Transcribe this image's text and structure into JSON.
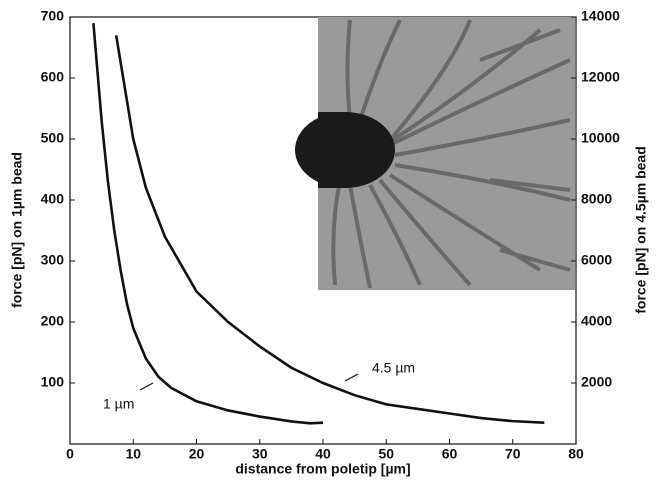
{
  "chart_data": {
    "type": "line",
    "x_label": "distance from poletip [µm]",
    "y_label": "force [pN] on 1µm bead",
    "y2_label": "force [pN] on 4.5µm bead",
    "xlim": [
      0,
      80
    ],
    "xticks": [
      0,
      10,
      20,
      30,
      40,
      50,
      60,
      70,
      80
    ],
    "ylim": [
      0,
      700
    ],
    "yticks": [
      100,
      200,
      300,
      400,
      500,
      600,
      700
    ],
    "y2lim": [
      0,
      14000
    ],
    "y2ticks": [
      2000,
      4000,
      6000,
      8000,
      10000,
      12000,
      14000
    ],
    "annotations": [
      "1 µm",
      "4.5 µm"
    ],
    "series": [
      {
        "name": "1 µm",
        "color": "#111111",
        "x": [
          3.7,
          5,
          6,
          7,
          8,
          9,
          10,
          12,
          14,
          16,
          20,
          25,
          30,
          35,
          38,
          40
        ],
        "values": [
          690,
          530,
          430,
          350,
          285,
          230,
          190,
          140,
          110,
          92,
          70,
          55,
          45,
          37,
          34,
          35
        ]
      },
      {
        "name": "4.5 µm",
        "color": "#111111",
        "axis": "y2",
        "x": [
          7.3,
          10,
          12,
          15,
          20,
          25,
          30,
          35,
          40,
          45,
          50,
          55,
          60,
          65,
          70,
          75
        ],
        "values": [
          13400,
          10000,
          8400,
          6800,
          5000,
          4000,
          3200,
          2500,
          2000,
          1600,
          1300,
          1150,
          1000,
          850,
          750,
          700
        ]
      }
    ]
  }
}
